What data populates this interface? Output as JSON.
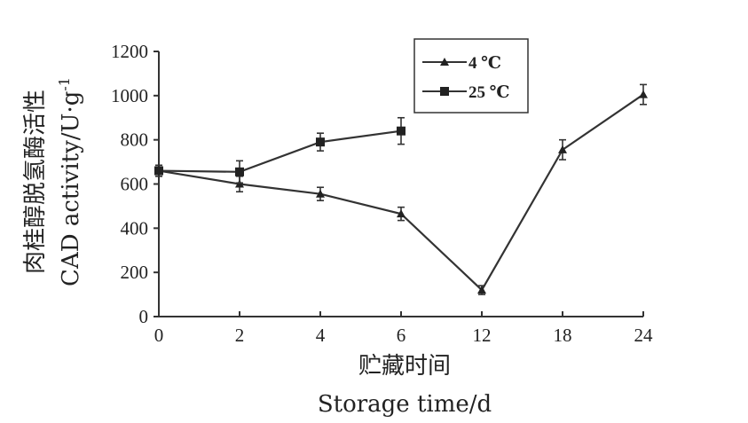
{
  "chart_data": {
    "type": "line",
    "x_categories": [
      "0",
      "2",
      "4",
      "6",
      "12",
      "18",
      "24"
    ],
    "xlabel_cn": "贮藏时间",
    "xlabel_en": "Storage  time/d",
    "ylabel_cn": "肉桂醇脱氢酶活性",
    "ylabel_en": "CAD  activity/U·g",
    "ylabel_sup": "-1",
    "ylim": [
      0,
      1200
    ],
    "y_ticks": [
      0,
      200,
      400,
      600,
      800,
      1000,
      1200
    ],
    "legend_position": "top-right",
    "series": [
      {
        "name": "4 ℃",
        "marker": "triangle",
        "values": [
          660,
          600,
          555,
          465,
          120,
          755,
          1005
        ],
        "errors": [
          25,
          35,
          30,
          30,
          20,
          45,
          45
        ]
      },
      {
        "name": "25 ℃",
        "marker": "square",
        "values": [
          660,
          655,
          790,
          840,
          null,
          null,
          null
        ],
        "errors": [
          25,
          50,
          40,
          60,
          null,
          null,
          null
        ]
      }
    ]
  }
}
